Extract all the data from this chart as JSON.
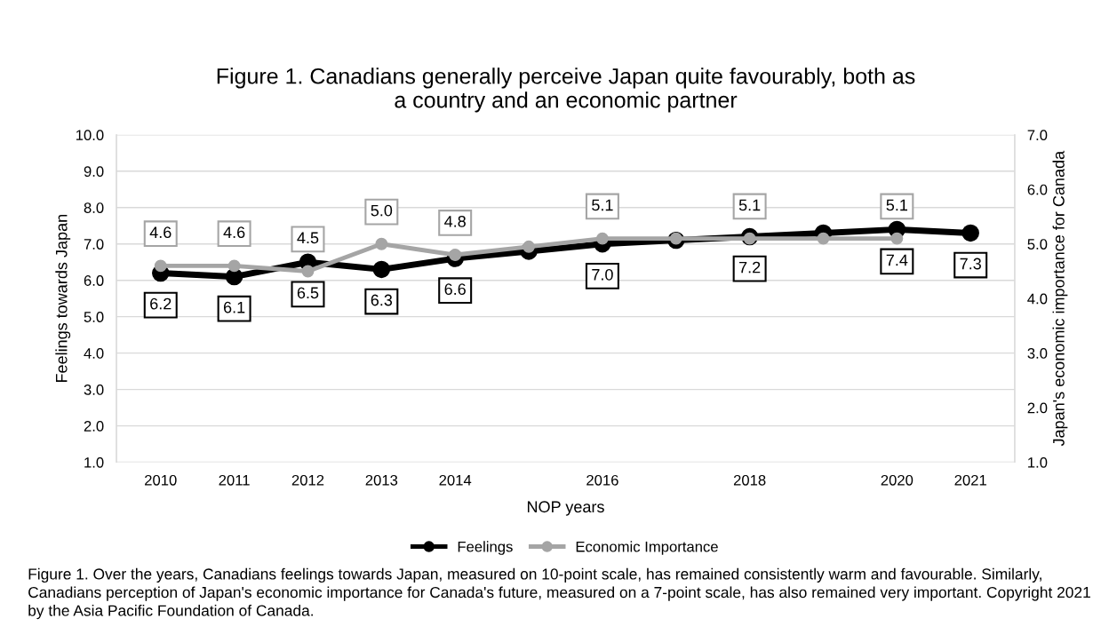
{
  "chart_data": {
    "type": "line",
    "title": "Figure 1. Canadians generally perceive Japan quite favourably, both as\na country and an economic partner",
    "xlabel": "NOP years",
    "ylabel": "Feelings towards Japan",
    "y2label": "Japan's economic importance for Canada",
    "categories": [
      "2010",
      "2011",
      "2012",
      "2013",
      "2014",
      null,
      "2016",
      null,
      "2018",
      null,
      "2020",
      "2021"
    ],
    "series": [
      {
        "name": "Feelings",
        "color": "#000000",
        "values": [
          6.2,
          6.1,
          6.5,
          6.3,
          6.6,
          6.8,
          7.0,
          7.1,
          7.2,
          7.3,
          7.4,
          7.3
        ],
        "value_labels": [
          "6.2",
          "6.1",
          "6.5",
          "6.3",
          "6.6",
          null,
          "7.0",
          null,
          "7.2",
          null,
          "7.4",
          "7.3"
        ]
      },
      {
        "name": "Economic Importance",
        "color": "#a5a5a5",
        "axis": "y2",
        "values": [
          4.6,
          4.6,
          4.5,
          5.0,
          4.8,
          4.95,
          5.1,
          5.1,
          5.1,
          5.1,
          5.1,
          null
        ],
        "value_labels": [
          "4.6",
          "4.6",
          "4.5",
          "5.0",
          "4.8",
          null,
          "5.1",
          null,
          "5.1",
          null,
          "5.1",
          null
        ]
      }
    ],
    "ylim": [
      1,
      10
    ],
    "yticks": [
      {
        "value": 1,
        "label": "1.0"
      },
      {
        "value": 2,
        "label": "2.0"
      },
      {
        "value": 3,
        "label": "3.0"
      },
      {
        "value": 4,
        "label": "4.0"
      },
      {
        "value": 5,
        "label": "5.0"
      },
      {
        "value": 6,
        "label": "6.0"
      },
      {
        "value": 7,
        "label": "7.0"
      },
      {
        "value": 8,
        "label": "8.0"
      },
      {
        "value": 9,
        "label": "9.0"
      },
      {
        "value": 10,
        "label": "10.0"
      }
    ],
    "y2lim": [
      1,
      7
    ],
    "y2ticks": [
      {
        "value": 1,
        "label": "1.0"
      },
      {
        "value": 2,
        "label": "2.0"
      },
      {
        "value": 3,
        "label": "3.0"
      },
      {
        "value": 4,
        "label": "4.0"
      },
      {
        "value": 5,
        "label": "5.0"
      },
      {
        "value": 6,
        "label": "6.0"
      },
      {
        "value": 7,
        "label": "7.0"
      }
    ],
    "grid": "y",
    "legend": "bottom",
    "marker": "circle",
    "line_style": "solid",
    "annotations": [
      "Figure 1. Over the years, Canadians feelings towards Japan, measured on 10-point scale, has remained consistently warm and favourable. Similarly, Canadians perception of Japan's economic importance for Canada's future, measured on a 7-point scale, has also remained very important. Copyright 2021 by the Asia Pacific Foundation of Canada."
    ]
  }
}
